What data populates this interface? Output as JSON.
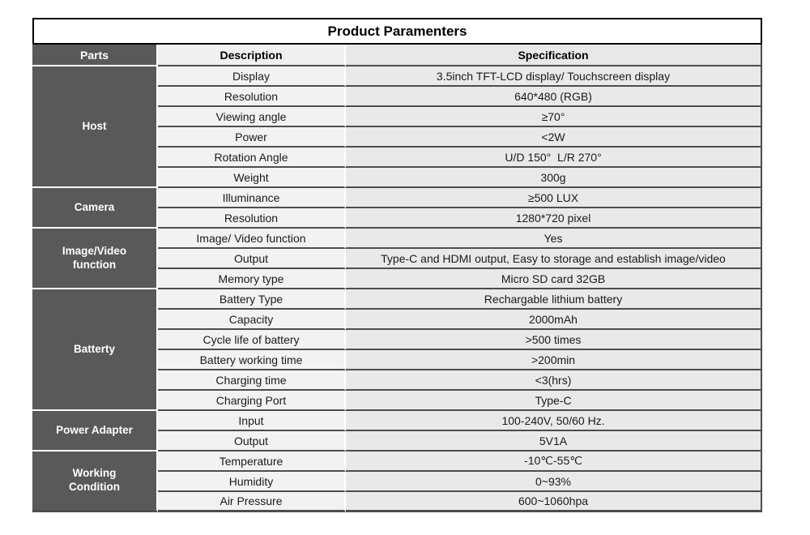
{
  "title": "Product Paramenters",
  "header": {
    "parts": "Parts",
    "description": "Description",
    "specification": "Specification"
  },
  "groups": [
    {
      "part": "Host",
      "rows": [
        {
          "description": "Display",
          "specification": "3.5inch TFT-LCD display/ Touchscreen display"
        },
        {
          "description": "Resolution",
          "specification": "640*480 (RGB)"
        },
        {
          "description": "Viewing angle",
          "specification": "≥70°"
        },
        {
          "description": "Power",
          "specification": "<2W"
        },
        {
          "description": "Rotation Angle",
          "specification": "U/D 150°  L/R 270°"
        },
        {
          "description": "Weight",
          "specification": "300g"
        }
      ]
    },
    {
      "part": "Camera",
      "rows": [
        {
          "description": "Illuminance",
          "specification": "≥500 LUX"
        },
        {
          "description": "Resolution",
          "specification": "1280*720 pixel"
        }
      ]
    },
    {
      "part": "Image/Video function",
      "rows": [
        {
          "description": "Image/ Video function",
          "specification": "Yes"
        },
        {
          "description": "Output",
          "specification": "Type-C and HDMI output, Easy to storage and establish image/video"
        },
        {
          "description": "Memory type",
          "specification": "Micro SD card 32GB"
        }
      ]
    },
    {
      "part": "Batterty",
      "rows": [
        {
          "description": "Battery Type",
          "specification": "Rechargable lithium battery"
        },
        {
          "description": "Capacity",
          "specification": "2000mAh"
        },
        {
          "description": "Cycle life of battery",
          "specification": ">500 times"
        },
        {
          "description": "Battery working time",
          "specification": ">200min"
        },
        {
          "description": "Charging time",
          "specification": "<3(hrs)"
        },
        {
          "description": "Charging Port",
          "specification": "Type-C"
        }
      ]
    },
    {
      "part": "Power Adapter",
      "rows": [
        {
          "description": "Input",
          "specification": "100-240V, 50/60 Hz."
        },
        {
          "description": "Output",
          "specification": "5V1A"
        }
      ]
    },
    {
      "part": "Working Condition",
      "rows": [
        {
          "description": "Temperature",
          "specification": "-10℃-55℃"
        },
        {
          "description": "Humidity",
          "specification": "0~93%"
        },
        {
          "description": "Air Pressure",
          "specification": "600~1060hpa"
        }
      ]
    }
  ],
  "colors": {
    "part_bg": "#595959",
    "part_text": "#ffffff",
    "description_bg": "#f2f2f2",
    "specification_bg": "#e9e9e9",
    "row_border": "#4d4d4d",
    "column_border": "#ffffff",
    "title_border": "#000000"
  }
}
